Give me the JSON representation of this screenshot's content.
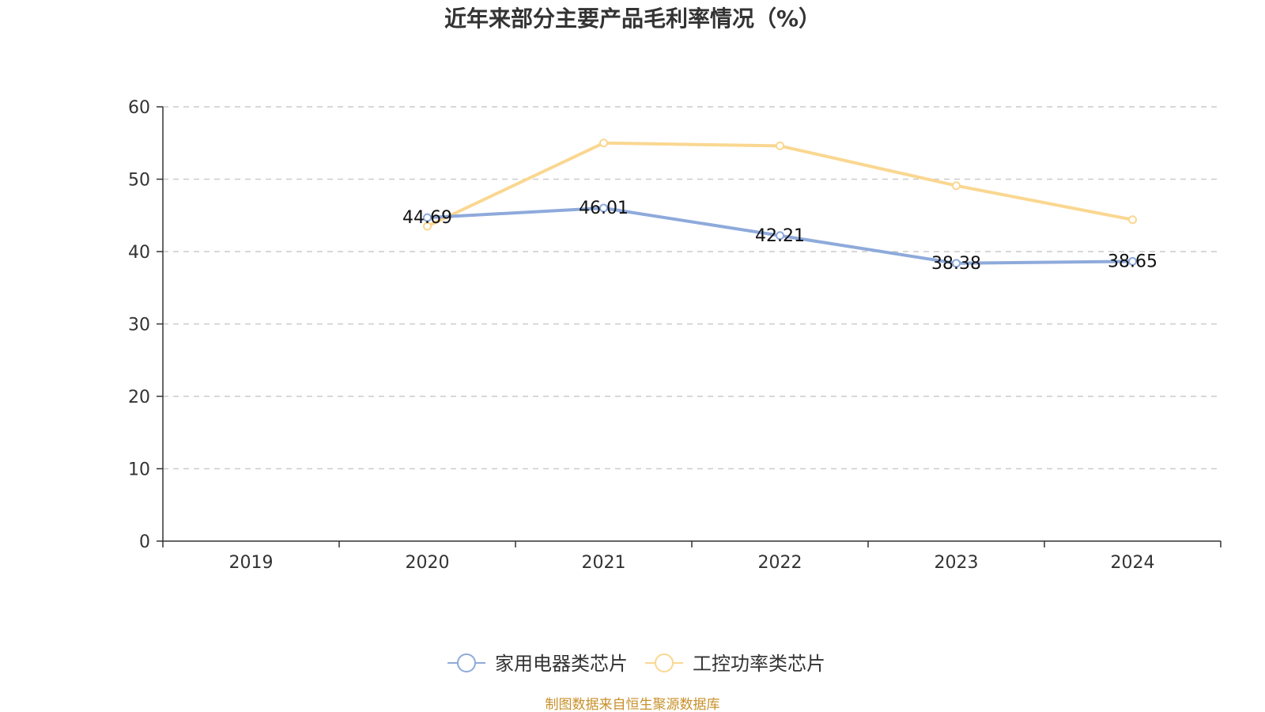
{
  "chart_data": {
    "type": "line",
    "title": "近年来部分主要产品毛利率情况（%）",
    "categories": [
      "2019",
      "2020",
      "2021",
      "2022",
      "2023",
      "2024"
    ],
    "ylim": [
      0,
      60
    ],
    "yticks": [
      "0",
      "10",
      "20",
      "30",
      "40",
      "50",
      "60"
    ],
    "grid": true,
    "legend_position": "bottom-center",
    "series": [
      {
        "name": "家用电器类芯片",
        "color": "#8eaadb",
        "values": [
          null,
          44.69,
          46.01,
          42.21,
          38.38,
          38.65
        ],
        "labels": [
          "",
          "44.69",
          "46.01",
          "42.21",
          "38.38",
          "38.65"
        ]
      },
      {
        "name": "工控功率类芯片",
        "color": "#fad791",
        "values": [
          null,
          43.5,
          55.0,
          54.6,
          49.1,
          44.4
        ],
        "labels": [
          "",
          "",
          "",
          "",
          "",
          ""
        ]
      }
    ]
  },
  "source": "制图数据来自恒生聚源数据库",
  "colors": {
    "axis": "#333333",
    "grid": "#cccccc",
    "source": "#c8902a"
  }
}
